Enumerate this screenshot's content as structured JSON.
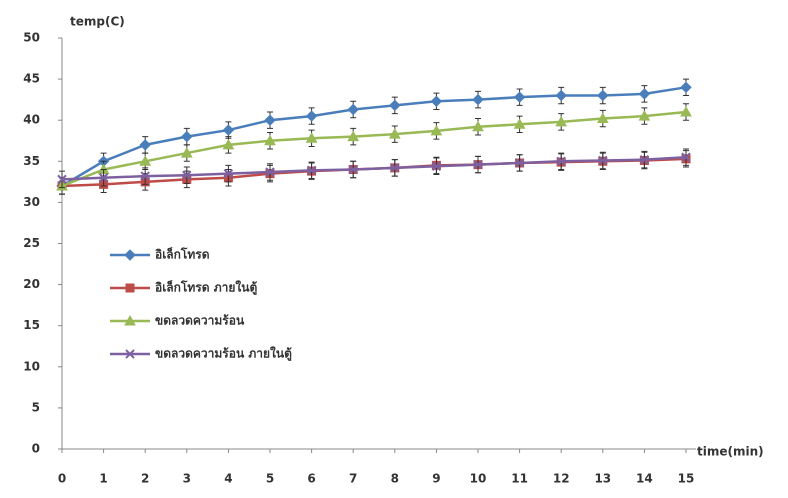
{
  "chart_data": {
    "type": "line",
    "y_label": "temp(C)",
    "x_label": "time(min)",
    "x": [
      0,
      1,
      2,
      3,
      4,
      5,
      6,
      7,
      8,
      9,
      10,
      11,
      12,
      13,
      14,
      15
    ],
    "xlim": [
      0,
      15
    ],
    "xticks": [
      0,
      1,
      2,
      3,
      4,
      5,
      6,
      7,
      8,
      9,
      10,
      11,
      12,
      13,
      14,
      15
    ],
    "ylim": [
      0,
      50
    ],
    "yticks": [
      0,
      5,
      10,
      15,
      20,
      25,
      30,
      35,
      40,
      45,
      50
    ],
    "legend": "left",
    "series": [
      {
        "name": "อิเล็กโทรด",
        "color": "#4a7ebb",
        "marker": "diamond",
        "values": [
          32,
          35,
          37,
          38,
          38.8,
          40,
          40.5,
          41.3,
          41.8,
          42.3,
          42.5,
          42.8,
          43,
          43,
          43.2,
          44
        ],
        "errors": [
          1,
          1,
          1,
          1,
          1,
          1,
          1,
          1,
          1,
          1,
          1,
          1,
          1,
          1,
          1,
          1
        ]
      },
      {
        "name": "อิเล็กโทรด ภายในตู้",
        "color": "#be4b48",
        "marker": "square",
        "values": [
          32,
          32.2,
          32.5,
          32.8,
          33,
          33.5,
          33.8,
          34,
          34.2,
          34.5,
          34.6,
          34.8,
          34.9,
          35,
          35.1,
          35.3
        ],
        "errors": [
          1,
          1,
          1,
          1,
          1,
          1,
          1,
          1,
          1,
          1,
          1,
          1,
          1,
          1,
          1,
          1
        ]
      },
      {
        "name": "ขดลวดความร้อน",
        "color": "#98b954",
        "marker": "triangle",
        "values": [
          32,
          34,
          35,
          36,
          37,
          37.5,
          37.8,
          38,
          38.3,
          38.7,
          39.2,
          39.5,
          39.8,
          40.2,
          40.5,
          41
        ],
        "errors": [
          1,
          1,
          1,
          1,
          1,
          1,
          1,
          1,
          1,
          1,
          1,
          1,
          1,
          1,
          1,
          1
        ]
      },
      {
        "name": "ขดลวดความร้อน ภายในตู้",
        "color": "#7d60a0",
        "marker": "x",
        "values": [
          32.8,
          33,
          33.2,
          33.3,
          33.5,
          33.7,
          33.9,
          34,
          34.2,
          34.4,
          34.6,
          34.8,
          35,
          35.1,
          35.2,
          35.5
        ],
        "errors": [
          1,
          1,
          1,
          1,
          1,
          1,
          1,
          1,
          1,
          1,
          1,
          1,
          1,
          1,
          1,
          1
        ]
      }
    ]
  }
}
